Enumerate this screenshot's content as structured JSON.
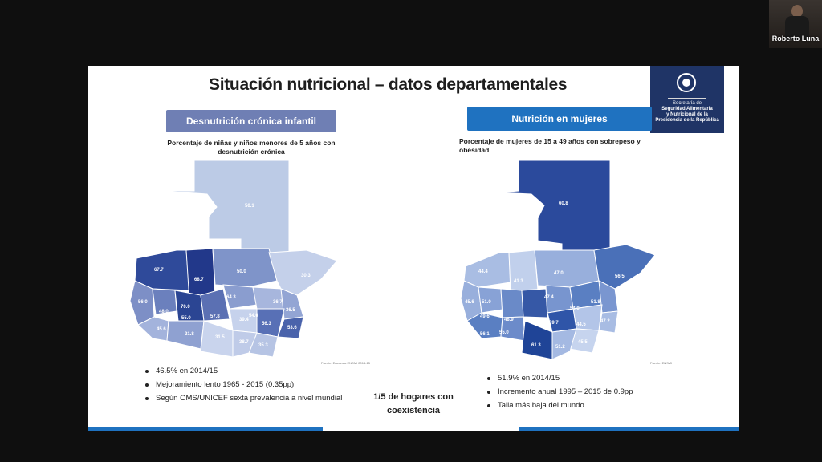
{
  "slide": {
    "title": "Situación nutricional – datos departamentales",
    "logo": {
      "line1": "Secretaría de",
      "line2": "Seguridad Alimentaria",
      "line3": "y Nutricional de la",
      "line4": "Presidencia de la República"
    },
    "left": {
      "badge": "Desnutrición crónica infantil",
      "subtitle": "Porcentaje de niñas y niños menores de 5 años con desnutrición crónica",
      "map_values": [
        "50.1",
        "67.7",
        "68.7",
        "50.0",
        "30.3",
        "56.0",
        "48.0",
        "70.0",
        "55.0",
        "64.3",
        "36.7",
        "45.6",
        "57.8",
        "36.5",
        "56.3",
        "53.6",
        "54.0",
        "39.4",
        "31.5",
        "35.3",
        "38.7",
        "21.8"
      ],
      "source": "Fuente: Encuesta ENSMI 2014-15",
      "bullets": [
        "46.5% en 2014/15",
        "Mejoramiento lento 1965 - 2015 (0.35pp)",
        "Según OMS/UNICEF sexta prevalencia a nivel mundial"
      ]
    },
    "right": {
      "badge": "Nutrición en mujeres",
      "subtitle": "Porcentaje de mujeres de 15 a 49 años con sobrepeso y obesidad",
      "map_values": [
        "60.8",
        "44.4",
        "41.3",
        "47.0",
        "56.5",
        "45.6",
        "51.0",
        "47.4",
        "51.8",
        "49.6",
        "48.9",
        "56.3",
        "59.7",
        "54.0",
        "44.5",
        "47.2",
        "56.1",
        "55.0",
        "61.3",
        "51.2",
        "45.5"
      ],
      "source": "Fuente: ENSMI",
      "bullets": [
        "51.9% en 2014/15",
        "Incremento anual 1995 – 2015 de 0.9pp",
        "Talla más baja del mundo"
      ]
    },
    "center_note": "1/5 de hogares con coexistencia"
  },
  "participant": {
    "name": "Roberto Luna"
  },
  "colors": {
    "left_badge": "#6f7fb4",
    "right_badge": "#1f72c0",
    "logo_bg": "#1f3466",
    "accent_bar": "#1f72c0"
  }
}
